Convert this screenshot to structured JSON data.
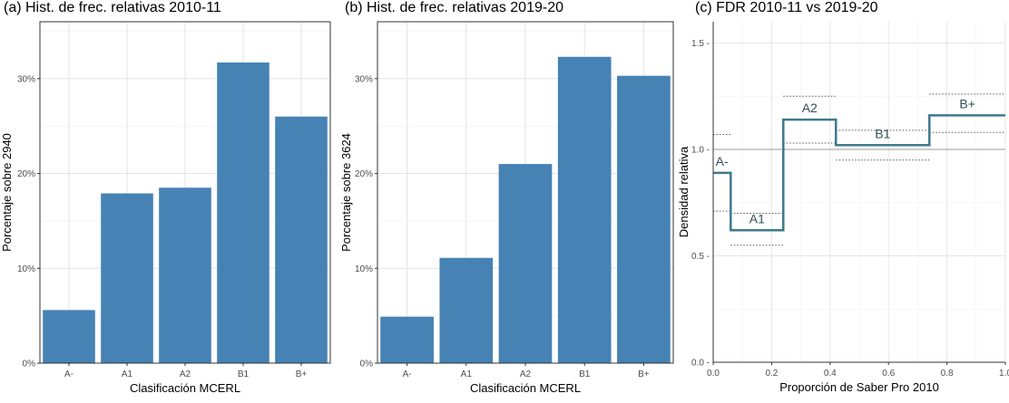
{
  "chart_data": [
    {
      "type": "bar",
      "title": "(a) Hist. de frec. relativas 2010-11",
      "xlabel": "Clasificación MCERL",
      "ylabel": "Porcentaje sobre  2940",
      "categories": [
        "A-",
        "A1",
        "A2",
        "B1",
        "B+"
      ],
      "values": [
        5.6,
        17.9,
        18.5,
        31.7,
        26.0
      ],
      "ylim": [
        0,
        36
      ],
      "yticks": [
        0,
        10,
        20,
        30
      ],
      "ytick_labels": [
        "0%",
        "10%",
        "20%",
        "30%"
      ],
      "bar_color": "#4682b4",
      "grid": true
    },
    {
      "type": "bar",
      "title": "(b) Hist. de frec. relativas 2019-20",
      "xlabel": "Clasificación MCERL",
      "ylabel": "Porcentaje sobre  3624",
      "categories": [
        "A-",
        "A1",
        "A2",
        "B1",
        "B+"
      ],
      "values": [
        4.9,
        11.1,
        21.0,
        32.3,
        30.3
      ],
      "ylim": [
        0,
        36
      ],
      "yticks": [
        0,
        10,
        20,
        30
      ],
      "ytick_labels": [
        "0%",
        "10%",
        "20%",
        "30%"
      ],
      "bar_color": "#4682b4",
      "grid": true
    },
    {
      "type": "line",
      "title": "(c) FDR 2010-11 vs 2019-20",
      "xlabel": "Proporción de Saber Pro 2010",
      "ylabel": "Densidad relativa",
      "xlim": [
        0,
        1
      ],
      "ylim": [
        0,
        1.6
      ],
      "xticks": [
        0,
        0.2,
        0.4,
        0.6,
        0.8,
        1.0
      ],
      "xtick_labels": [
        "0.0",
        "0.2",
        "0.4",
        "0.6",
        "0.8",
        "1.0"
      ],
      "yticks": [
        0,
        0.5,
        1.0,
        1.5
      ],
      "ytick_labels": [
        "0.0 -",
        "0.5 -",
        "1.0 -",
        "1.5 -"
      ],
      "reference_line": 1.0,
      "line_color": "#3d7a8c",
      "grid": true,
      "segments": [
        {
          "label": "A-",
          "x0": 0.0,
          "x1": 0.06,
          "y": 0.89,
          "lower": 0.71,
          "upper": 1.07
        },
        {
          "label": "A1",
          "x0": 0.06,
          "x1": 0.24,
          "y": 0.62,
          "lower": 0.55,
          "upper": 0.7
        },
        {
          "label": "A2",
          "x0": 0.24,
          "x1": 0.42,
          "y": 1.14,
          "lower": 1.03,
          "upper": 1.25
        },
        {
          "label": "B1",
          "x0": 0.42,
          "x1": 0.74,
          "y": 1.02,
          "lower": 0.95,
          "upper": 1.09
        },
        {
          "label": "B+",
          "x0": 0.74,
          "x1": 1.0,
          "y": 1.16,
          "lower": 1.08,
          "upper": 1.26
        }
      ]
    }
  ]
}
